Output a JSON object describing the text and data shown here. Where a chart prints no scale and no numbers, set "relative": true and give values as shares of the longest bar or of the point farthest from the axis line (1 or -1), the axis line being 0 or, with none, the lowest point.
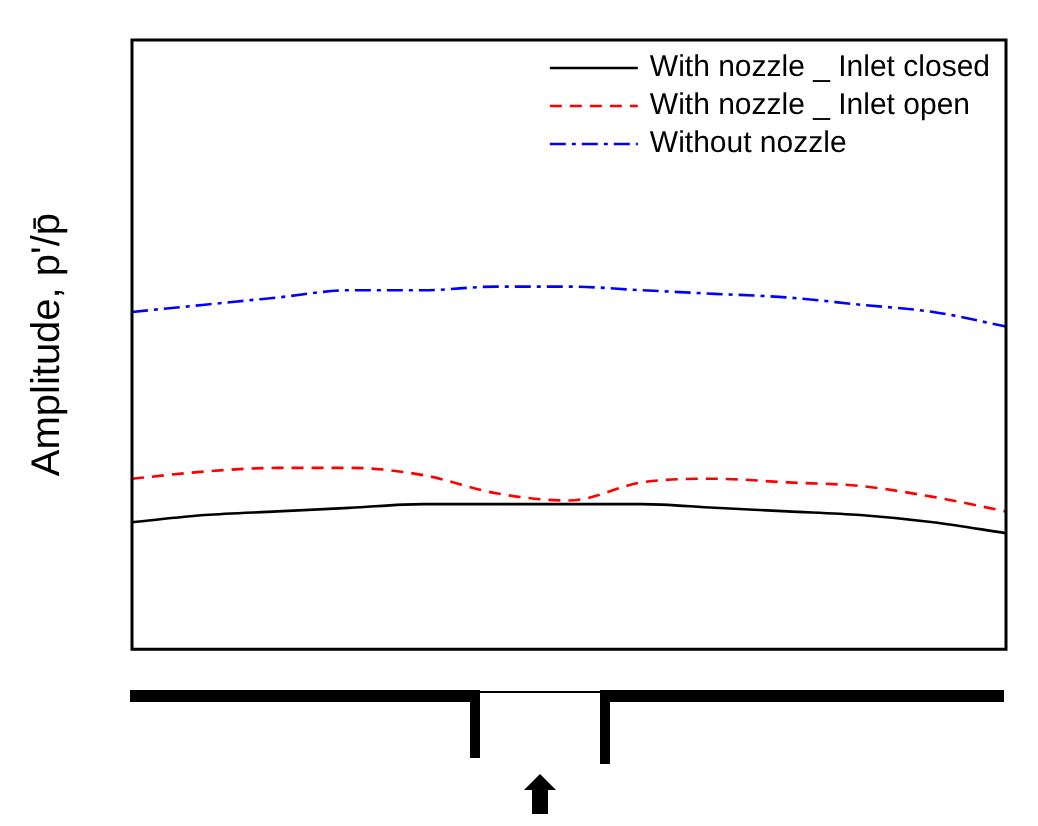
{
  "chart_data": {
    "type": "line",
    "ylabel": "Amplitude, p'/p̄",
    "relative": true,
    "legend": "top right",
    "grid": false,
    "categories": [
      null,
      null,
      null,
      null,
      null,
      null,
      null,
      null,
      null,
      null,
      null,
      null,
      null
    ],
    "series": [
      {
        "name": "With nozzle _ Inlet closed",
        "color": "#000000",
        "line_style": "solid",
        "values": [
          0.35,
          0.37,
          0.38,
          0.39,
          0.4,
          0.4,
          0.4,
          0.4,
          0.39,
          0.38,
          0.37,
          0.35,
          0.32
        ]
      },
      {
        "name": "With nozzle _ Inlet open",
        "color": "#ff0000",
        "line_style": "dashed",
        "values": [
          0.47,
          0.49,
          0.5,
          0.5,
          0.48,
          0.43,
          0.41,
          0.46,
          0.47,
          0.46,
          0.45,
          0.42,
          0.38
        ]
      },
      {
        "name": "Without nozzle",
        "color": "#0000ff",
        "line_style": "dashdot",
        "values": [
          0.93,
          0.95,
          0.97,
          0.99,
          0.99,
          1.0,
          1.0,
          0.99,
          0.98,
          0.97,
          0.95,
          0.93,
          0.89
        ]
      }
    ]
  }
}
